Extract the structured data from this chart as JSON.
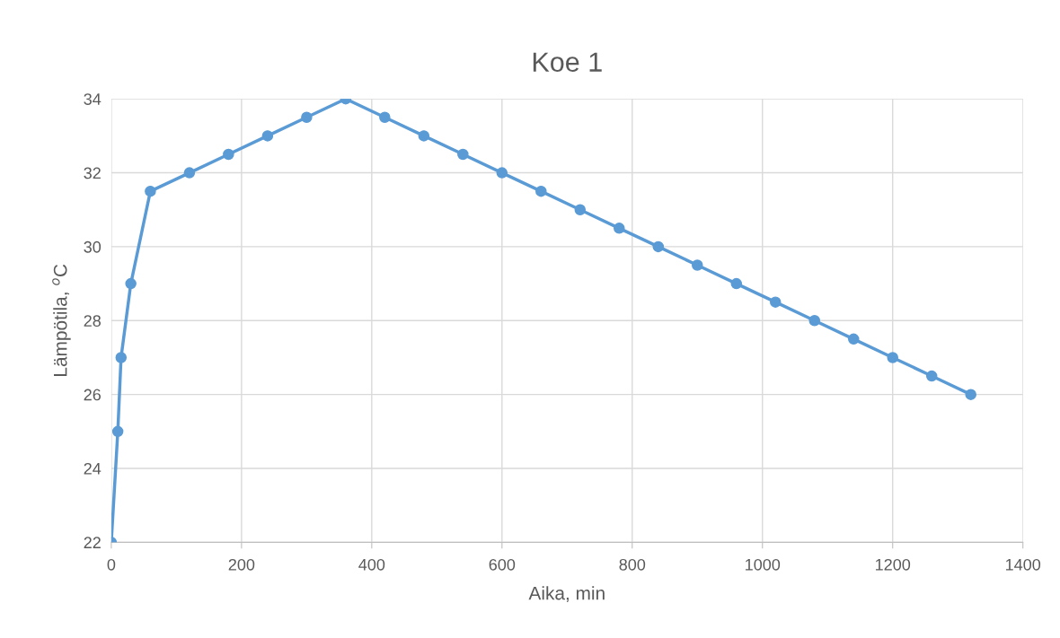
{
  "chart_data": {
    "type": "line",
    "title": "Koe 1",
    "xlabel": "Aika, min",
    "ylabel": "Lämpötila, $^{o}$C",
    "x": [
      0,
      10,
      15,
      30,
      60,
      120,
      180,
      240,
      300,
      360,
      420,
      480,
      540,
      600,
      660,
      720,
      780,
      840,
      900,
      960,
      1020,
      1080,
      1140,
      1200,
      1260,
      1320
    ],
    "series": [
      {
        "color": "#5b9bd5",
        "values": [
          22,
          25,
          27,
          29,
          31.5,
          32,
          32.5,
          33,
          33.5,
          34,
          33.5,
          33,
          32.5,
          32,
          31.5,
          31,
          30.5,
          30,
          29.5,
          29,
          28.5,
          28,
          27.5,
          27,
          26.5,
          26
        ]
      }
    ],
    "xlim": [
      0,
      1400
    ],
    "xticks": [
      0,
      200,
      400,
      600,
      800,
      1000,
      1200,
      1400
    ],
    "ylim": [
      22,
      34
    ],
    "yticks": [
      22,
      24,
      26,
      28,
      30,
      32,
      34
    ],
    "grid": true,
    "marker": "circle",
    "line_style": "solid"
  }
}
